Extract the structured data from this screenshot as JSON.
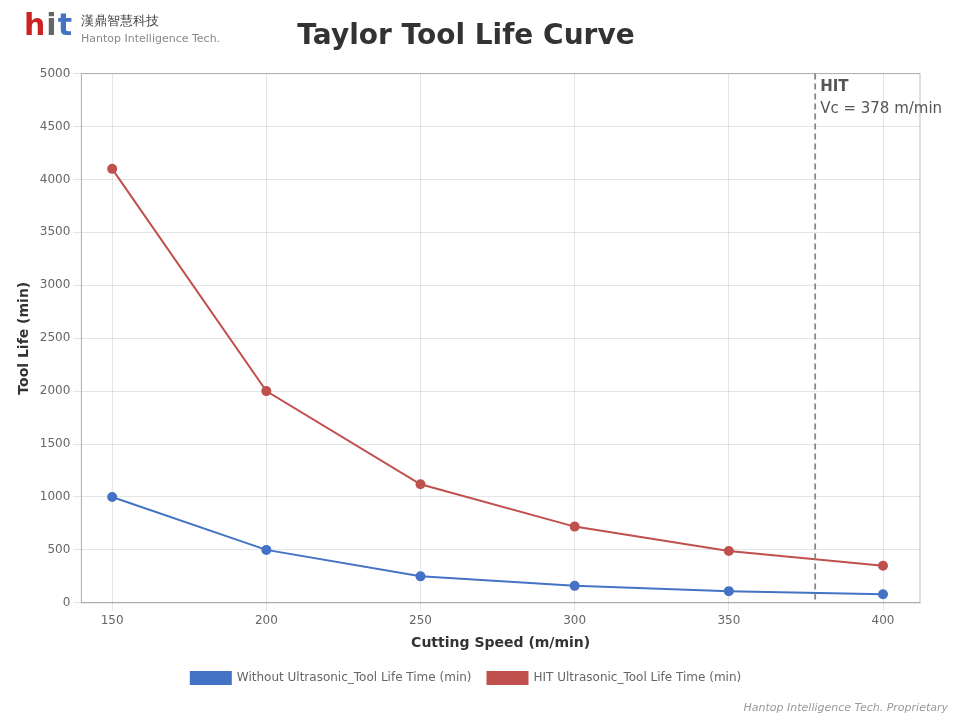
{
  "chart_data": {
    "type": "line",
    "title": "Taylor Tool Life Curve",
    "x_label": "Cutting Speed (m/min)",
    "y_label": "Tool Life (min)",
    "x": [
      150,
      200,
      250,
      300,
      350,
      400
    ],
    "series": [
      {
        "name": "Without Ultrasonic_Tool Life Time (min)",
        "color": "#4472C4",
        "values": [
          1000,
          500,
          250,
          160,
          110,
          80
        ]
      },
      {
        "name": "HIT Ultrasonic_Tool Life Time (min)",
        "color": "#C0504D",
        "values": [
          4100,
          2000,
          1120,
          720,
          490,
          350
        ]
      }
    ],
    "marker": "circle",
    "line_style": "solid",
    "xlim": [
      140,
      412
    ],
    "xticks": [
      150,
      200,
      250,
      300,
      350,
      400
    ],
    "ylim": [
      0,
      5000
    ],
    "yticks": [
      0,
      500,
      1000,
      1500,
      2000,
      2500,
      3000,
      3500,
      4000,
      4500,
      5000
    ],
    "grid": true,
    "legend": "bottom",
    "vline": {
      "x": 378,
      "labels": [
        "HIT",
        "Vc = 378 m/min"
      ]
    },
    "logo": {
      "letters": [
        {
          "text": "h",
          "color": "#CC2222"
        },
        {
          "text": "i",
          "color": "#666666"
        },
        {
          "text": "t",
          "color": "#4472C4"
        }
      ],
      "name": "漢鼎智慧科技",
      "subtitle": "Hantop Intelligence Tech."
    },
    "watermark": "Hantop Intelligence Tech. Proprietary"
  }
}
